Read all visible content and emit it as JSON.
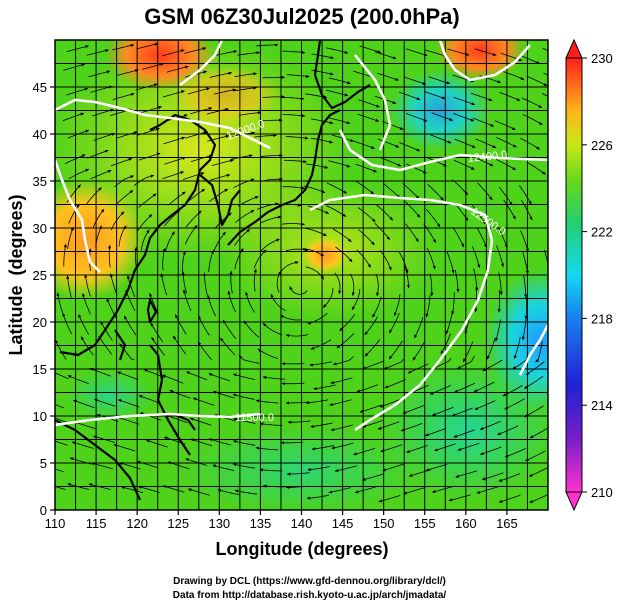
{
  "title": "GSM 06Z30Jul2025 (200.0hPa)",
  "x_axis": {
    "label": "Longitude (degrees)",
    "min": 110,
    "max": 170,
    "ticks": [
      "110",
      "115",
      "120",
      "125",
      "130",
      "135",
      "140",
      "145",
      "150",
      "155",
      "160",
      "165"
    ]
  },
  "y_axis": {
    "label": "Latitude  (degrees)",
    "min": 0,
    "max": 50,
    "ticks": [
      "0",
      "5",
      "10",
      "15",
      "20",
      "25",
      "30",
      "35",
      "40",
      "45"
    ]
  },
  "colorbar": {
    "min": 210,
    "max": 230,
    "ticks": [
      "210",
      "214",
      "218",
      "222",
      "226",
      "230"
    ]
  },
  "contours": [
    {
      "label": "12500.0"
    },
    {
      "label": "12400.0"
    },
    {
      "label": "12000.0"
    },
    {
      "label": "11500.0"
    }
  ],
  "footer": {
    "line1": "Drawing by DCL (https://www.gfd-dennou.org/library/dcl/)",
    "line2": "Data from http://database.rish.kyoto-u.ac.jp/arch/jmadata/"
  }
}
